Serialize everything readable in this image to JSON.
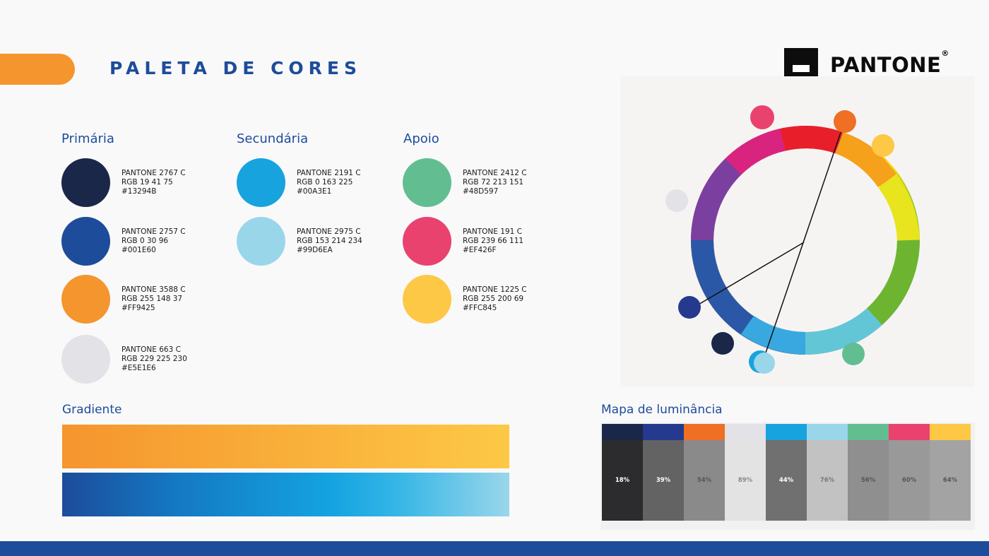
{
  "header": {
    "title": "PALETA DE CORES"
  },
  "logo": {
    "word": "PANTONE",
    "reg": "®"
  },
  "columns": [
    {
      "title": "Primária",
      "swatches": [
        {
          "pantone": "PANTONE 2767 C",
          "rgb": "RGB 19 41 75",
          "hex": "#13294B"
        },
        {
          "pantone": "PANTONE 2757 C",
          "rgb": "RGB 0 30 96",
          "hex": "#001E60"
        },
        {
          "pantone": "PANTONE 3588 C",
          "rgb": "RGB 255 148 37",
          "hex": "#FF9425"
        },
        {
          "pantone": "PANTONE 663 C",
          "rgb": "RGB 229 225 230",
          "hex": "#E5E1E6"
        }
      ]
    },
    {
      "title": "Secundária",
      "swatches": [
        {
          "pantone": "PANTONE 2191 C",
          "rgb": "RGB 0 163 225",
          "hex": "#00A3E1"
        },
        {
          "pantone": "PANTONE 2975 C",
          "rgb": "RGB 153 214 234",
          "hex": "#99D6EA"
        }
      ]
    },
    {
      "title": "Apoio",
      "swatches": [
        {
          "pantone": "PANTONE 2412 C",
          "rgb": "RGB 72 213 151",
          "hex": "#48D597"
        },
        {
          "pantone": "PANTONE 191 C",
          "rgb": "RGB 239 66 111",
          "hex": "#EF426F"
        },
        {
          "pantone": "PANTONE 1225 C",
          "rgb": "RGB 255 200 69",
          "hex": "#FFC845"
        }
      ]
    }
  ],
  "swatch_colors": [
    "#1a2749",
    "#1d4c9a",
    "#f5952e",
    "#e3e2e7",
    "#17a3de",
    "#9ad6ea",
    "#62be91",
    "#e9426f",
    "#fdc846"
  ],
  "gradient": {
    "title": "Gradiente"
  },
  "luminance": {
    "title": "Mapa de luminância",
    "items": [
      {
        "color": "#1a2749",
        "gray": "#2c2c2e",
        "value": "18%",
        "text": "#ffffff"
      },
      {
        "color": "#25398f",
        "gray": "#636363",
        "value": "39%",
        "text": "#ffffff"
      },
      {
        "color": "#ef6f24",
        "gray": "#8a8a8a",
        "value": "54%",
        "text": "#555555"
      },
      {
        "color": "#e3e2e7",
        "gray": "#e3e3e3",
        "value": "89%",
        "text": "#888888"
      },
      {
        "color": "#17a3de",
        "gray": "#707070",
        "value": "44%",
        "text": "#ffffff"
      },
      {
        "color": "#9ad6ea",
        "gray": "#c2c2c2",
        "value": "76%",
        "text": "#777777"
      },
      {
        "color": "#62be91",
        "gray": "#8f8f8f",
        "value": "56%",
        "text": "#555555"
      },
      {
        "color": "#e9426f",
        "gray": "#999999",
        "value": "60%",
        "text": "#555555"
      },
      {
        "color": "#fdc846",
        "gray": "#a3a3a3",
        "value": "64%",
        "text": "#555555"
      }
    ]
  }
}
